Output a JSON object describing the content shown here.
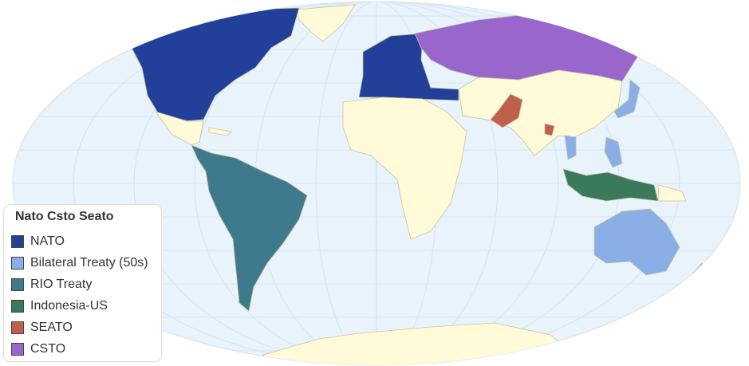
{
  "map": {
    "ocean_color": "#e9f3fb",
    "land_color": "#fffbd8",
    "border_color": "#c8c4a0"
  },
  "legend": {
    "title": "Nato Csto Seato",
    "items": [
      {
        "label": "NATO",
        "color": "#22409a"
      },
      {
        "label": "Bilateral Treaty (50s)",
        "color": "#8aaee6"
      },
      {
        "label": "RIO Treaty",
        "color": "#3f7a8c"
      },
      {
        "label": "Indonesia-US",
        "color": "#3a7a5a"
      },
      {
        "label": "SEATO",
        "color": "#c0604b"
      },
      {
        "label": "CSTO",
        "color": "#9966cc"
      }
    ]
  }
}
